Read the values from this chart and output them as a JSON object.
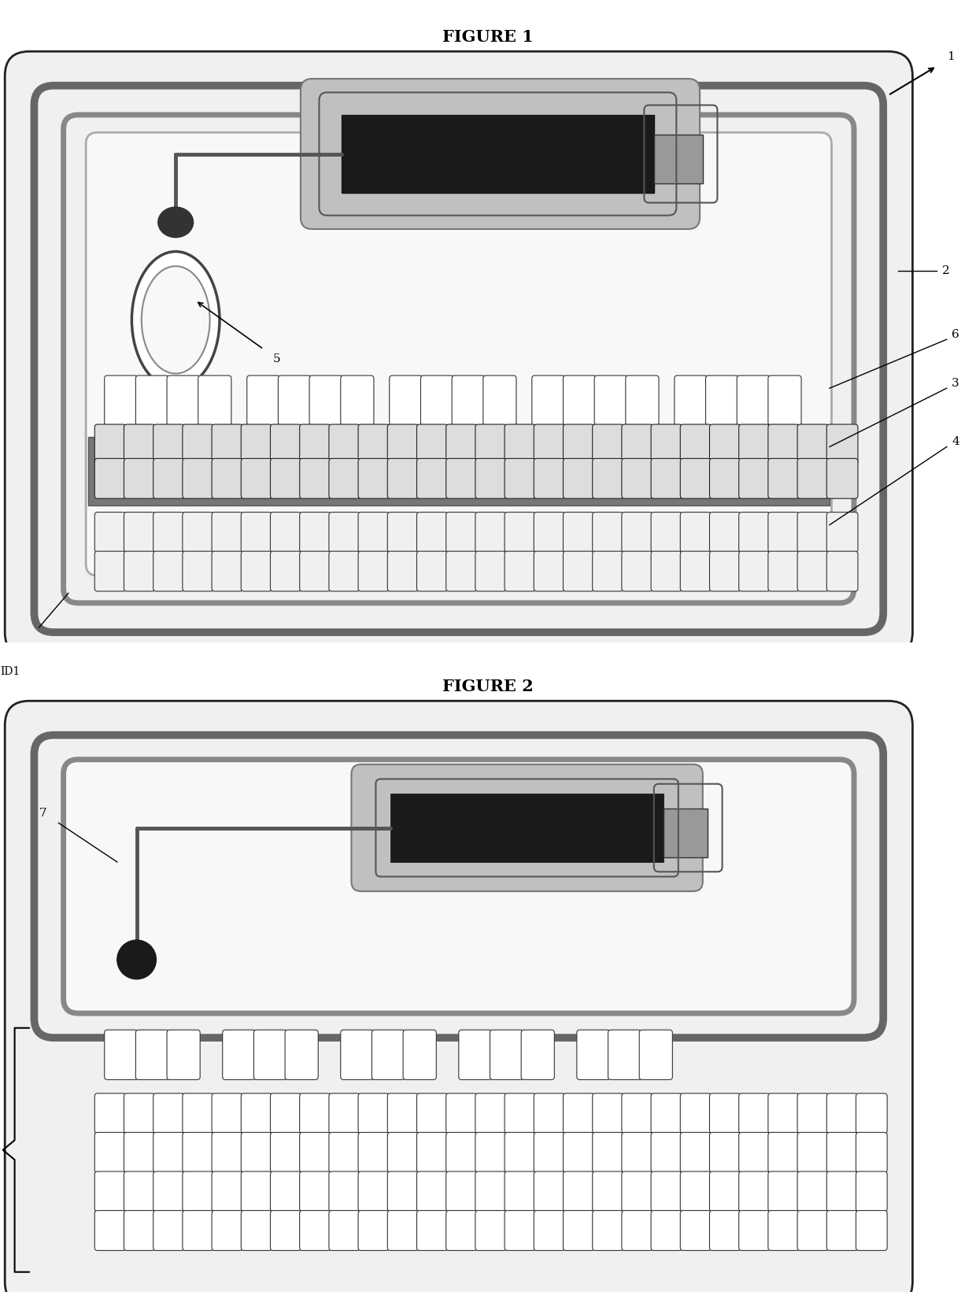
{
  "bg_color": "#ffffff",
  "fig1_title": "FIGURE 1",
  "fig2_title": "FIGURE 2",
  "card_face": "#f2f2f2",
  "card_edge": "#111111",
  "ant_edge": "#444444",
  "chip_fill": "#1a1a1a",
  "chip_edge": "#333333",
  "emboss_face": "#ffffff",
  "emboss_edge": "#333333",
  "band_fill": "#555555",
  "label_fs": 11,
  "title_fs": 15
}
